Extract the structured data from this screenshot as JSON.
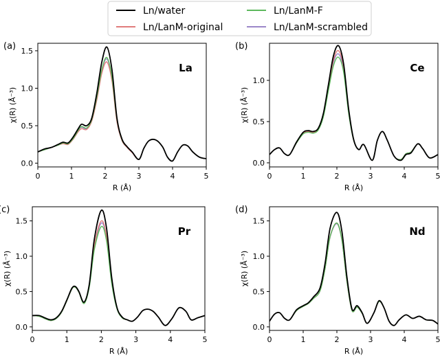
{
  "legend": {
    "placement": "top-center",
    "items": [
      {
        "label": "Ln/water",
        "color": "#000000"
      },
      {
        "label": "Ln/LanM-F",
        "color": "#5cb85c"
      },
      {
        "label": "Ln/LanM-original",
        "color": "#e07b7b"
      },
      {
        "label": "Ln/LanM-scrambled",
        "color": "#9b86c9"
      }
    ]
  },
  "chart_data": [
    {
      "type": "line",
      "panel": "(a)",
      "element": "La",
      "xlabel": "R (Å)",
      "ylabel": "χ(R) (Å⁻³)",
      "xlim": [
        0,
        5
      ],
      "ylim": [
        -0.05,
        1.6
      ],
      "xticks": [
        0,
        1,
        2,
        3,
        4,
        5
      ],
      "yticks": [
        0.0,
        0.5,
        1.0,
        1.5
      ],
      "x": [
        0,
        0.2,
        0.4,
        0.6,
        0.75,
        0.9,
        1.05,
        1.2,
        1.3,
        1.45,
        1.6,
        1.75,
        1.9,
        2.05,
        2.2,
        2.35,
        2.5,
        2.65,
        2.8,
        3.0,
        3.15,
        3.3,
        3.5,
        3.7,
        3.85,
        4.0,
        4.15,
        4.3,
        4.45,
        4.6,
        4.8,
        5.0
      ],
      "series": [
        {
          "name": "Ln/water",
          "color": "#000000",
          "values": [
            0.15,
            0.19,
            0.21,
            0.25,
            0.28,
            0.27,
            0.35,
            0.46,
            0.52,
            0.5,
            0.6,
            0.93,
            1.35,
            1.55,
            1.25,
            0.6,
            0.32,
            0.22,
            0.15,
            0.05,
            0.2,
            0.3,
            0.31,
            0.22,
            0.08,
            0.03,
            0.15,
            0.24,
            0.23,
            0.15,
            0.08,
            0.06
          ]
        },
        {
          "name": "Ln/LanM-F",
          "color": "#5cb85c",
          "values": [
            0.15,
            0.18,
            0.21,
            0.24,
            0.27,
            0.26,
            0.33,
            0.44,
            0.49,
            0.47,
            0.58,
            0.88,
            1.25,
            1.41,
            1.15,
            0.58,
            0.31,
            0.22,
            0.15,
            0.05,
            0.2,
            0.3,
            0.31,
            0.22,
            0.08,
            0.03,
            0.15,
            0.24,
            0.23,
            0.15,
            0.08,
            0.06
          ]
        },
        {
          "name": "Ln/LanM-original",
          "color": "#e07b7b",
          "values": [
            0.15,
            0.18,
            0.21,
            0.24,
            0.26,
            0.25,
            0.32,
            0.42,
            0.46,
            0.45,
            0.56,
            0.84,
            1.2,
            1.35,
            1.1,
            0.55,
            0.3,
            0.21,
            0.14,
            0.05,
            0.2,
            0.3,
            0.31,
            0.22,
            0.08,
            0.03,
            0.15,
            0.24,
            0.23,
            0.15,
            0.08,
            0.06
          ]
        },
        {
          "name": "Ln/LanM-scrambled",
          "color": "#9b86c9",
          "values": [
            0.15,
            0.18,
            0.21,
            0.24,
            0.27,
            0.26,
            0.33,
            0.44,
            0.48,
            0.46,
            0.57,
            0.87,
            1.24,
            1.39,
            1.14,
            0.57,
            0.31,
            0.22,
            0.15,
            0.05,
            0.2,
            0.3,
            0.31,
            0.22,
            0.08,
            0.03,
            0.15,
            0.24,
            0.23,
            0.15,
            0.08,
            0.06
          ]
        }
      ]
    },
    {
      "type": "line",
      "panel": "(b)",
      "element": "Ce",
      "xlabel": "R (Å)",
      "ylabel": "χ(R) (Å⁻³)",
      "xlim": [
        0,
        5
      ],
      "ylim": [
        -0.05,
        1.45
      ],
      "xticks": [
        0,
        1,
        2,
        3,
        4,
        5
      ],
      "yticks": [
        0.0,
        0.5,
        1.0
      ],
      "x": [
        0,
        0.15,
        0.3,
        0.45,
        0.6,
        0.8,
        1.0,
        1.15,
        1.3,
        1.45,
        1.6,
        1.75,
        1.9,
        2.05,
        2.2,
        2.35,
        2.5,
        2.65,
        2.8,
        3.05,
        3.2,
        3.35,
        3.5,
        3.7,
        3.9,
        4.05,
        4.2,
        4.4,
        4.55,
        4.75,
        5.0
      ],
      "series": [
        {
          "name": "Ln/water",
          "color": "#000000",
          "values": [
            0.1,
            0.16,
            0.18,
            0.11,
            0.1,
            0.25,
            0.37,
            0.39,
            0.38,
            0.42,
            0.6,
            0.95,
            1.3,
            1.42,
            1.2,
            0.65,
            0.28,
            0.16,
            0.22,
            0.03,
            0.27,
            0.38,
            0.27,
            0.08,
            0.03,
            0.1,
            0.12,
            0.23,
            0.17,
            0.06,
            0.1
          ]
        },
        {
          "name": "Ln/LanM-F",
          "color": "#5cb85c",
          "values": [
            0.1,
            0.16,
            0.18,
            0.11,
            0.1,
            0.24,
            0.35,
            0.37,
            0.36,
            0.4,
            0.56,
            0.88,
            1.18,
            1.28,
            1.1,
            0.6,
            0.27,
            0.16,
            0.22,
            0.03,
            0.27,
            0.38,
            0.27,
            0.08,
            0.04,
            0.11,
            0.13,
            0.23,
            0.17,
            0.06,
            0.1
          ]
        },
        {
          "name": "Ln/LanM-original",
          "color": "#e07b7b",
          "values": [
            0.1,
            0.16,
            0.18,
            0.11,
            0.1,
            0.24,
            0.36,
            0.38,
            0.37,
            0.41,
            0.58,
            0.92,
            1.25,
            1.36,
            1.16,
            0.62,
            0.27,
            0.16,
            0.22,
            0.03,
            0.27,
            0.38,
            0.27,
            0.08,
            0.04,
            0.11,
            0.13,
            0.23,
            0.17,
            0.06,
            0.1
          ]
        },
        {
          "name": "Ln/LanM-scrambled",
          "color": "#9b86c9",
          "values": [
            0.1,
            0.16,
            0.18,
            0.11,
            0.1,
            0.24,
            0.36,
            0.38,
            0.37,
            0.41,
            0.57,
            0.9,
            1.22,
            1.32,
            1.13,
            0.61,
            0.27,
            0.16,
            0.22,
            0.03,
            0.27,
            0.38,
            0.27,
            0.08,
            0.04,
            0.11,
            0.13,
            0.23,
            0.17,
            0.06,
            0.1
          ]
        }
      ]
    },
    {
      "type": "line",
      "panel": "(c)",
      "element": "Pr",
      "xlabel": "R (Å)",
      "ylabel": "χ(R) (Å⁻³)",
      "xlim": [
        0,
        5
      ],
      "ylim": [
        -0.05,
        1.7
      ],
      "xticks": [
        0,
        1,
        2,
        3,
        4,
        5
      ],
      "yticks": [
        0.0,
        0.5,
        1.0,
        1.5
      ],
      "x": [
        0,
        0.2,
        0.4,
        0.55,
        0.7,
        0.85,
        1.0,
        1.15,
        1.25,
        1.35,
        1.5,
        1.65,
        1.8,
        2.0,
        2.15,
        2.3,
        2.45,
        2.6,
        2.75,
        2.9,
        3.05,
        3.2,
        3.35,
        3.5,
        3.65,
        3.85,
        4.05,
        4.25,
        4.45,
        4.6,
        4.8,
        5.0
      ],
      "series": [
        {
          "name": "Ln/water",
          "color": "#000000",
          "values": [
            0.16,
            0.16,
            0.12,
            0.1,
            0.13,
            0.22,
            0.38,
            0.55,
            0.57,
            0.5,
            0.35,
            0.6,
            1.25,
            1.65,
            1.4,
            0.7,
            0.28,
            0.14,
            0.1,
            0.08,
            0.14,
            0.23,
            0.25,
            0.22,
            0.14,
            0.02,
            0.12,
            0.27,
            0.22,
            0.1,
            0.13,
            0.16
          ]
        },
        {
          "name": "Ln/LanM-F",
          "color": "#5cb85c",
          "values": [
            0.16,
            0.15,
            0.11,
            0.09,
            0.12,
            0.21,
            0.37,
            0.54,
            0.56,
            0.49,
            0.33,
            0.56,
            1.1,
            1.42,
            1.22,
            0.62,
            0.26,
            0.13,
            0.1,
            0.08,
            0.14,
            0.23,
            0.25,
            0.22,
            0.14,
            0.02,
            0.12,
            0.27,
            0.22,
            0.1,
            0.13,
            0.16
          ]
        },
        {
          "name": "Ln/LanM-original",
          "color": "#e07b7b",
          "values": [
            0.16,
            0.15,
            0.11,
            0.09,
            0.12,
            0.21,
            0.37,
            0.54,
            0.56,
            0.49,
            0.34,
            0.58,
            1.16,
            1.5,
            1.28,
            0.65,
            0.27,
            0.13,
            0.1,
            0.08,
            0.14,
            0.23,
            0.25,
            0.22,
            0.14,
            0.02,
            0.12,
            0.27,
            0.22,
            0.1,
            0.13,
            0.16
          ]
        },
        {
          "name": "Ln/LanM-scrambled",
          "color": "#9b86c9",
          "values": [
            0.16,
            0.15,
            0.11,
            0.09,
            0.12,
            0.21,
            0.37,
            0.54,
            0.56,
            0.49,
            0.34,
            0.57,
            1.14,
            1.47,
            1.26,
            0.64,
            0.27,
            0.13,
            0.1,
            0.08,
            0.14,
            0.23,
            0.25,
            0.22,
            0.14,
            0.02,
            0.12,
            0.27,
            0.22,
            0.1,
            0.13,
            0.16
          ]
        }
      ]
    },
    {
      "type": "line",
      "panel": "(d)",
      "element": "Nd",
      "xlabel": "R (Å)",
      "ylabel": "χ(R) (Å⁻³)",
      "xlim": [
        0,
        5
      ],
      "ylim": [
        -0.05,
        1.7
      ],
      "xticks": [
        0,
        1,
        2,
        3,
        4,
        5
      ],
      "yticks": [
        0.0,
        0.5,
        1.0,
        1.5
      ],
      "x": [
        0,
        0.15,
        0.3,
        0.45,
        0.6,
        0.8,
        1.0,
        1.15,
        1.3,
        1.5,
        1.65,
        1.8,
        2.0,
        2.15,
        2.3,
        2.45,
        2.6,
        2.75,
        2.9,
        3.1,
        3.25,
        3.4,
        3.55,
        3.7,
        3.85,
        4.05,
        4.25,
        4.45,
        4.65,
        4.85,
        5.0
      ],
      "series": [
        {
          "name": "Ln/water",
          "color": "#000000",
          "values": [
            0.08,
            0.18,
            0.2,
            0.12,
            0.1,
            0.24,
            0.3,
            0.34,
            0.42,
            0.55,
            0.9,
            1.4,
            1.62,
            1.35,
            0.7,
            0.25,
            0.3,
            0.2,
            0.05,
            0.2,
            0.37,
            0.27,
            0.08,
            0.02,
            0.1,
            0.17,
            0.12,
            0.15,
            0.1,
            0.09,
            0.04
          ]
        },
        {
          "name": "Ln/LanM-F",
          "color": "#5cb85c",
          "values": [
            0.08,
            0.18,
            0.2,
            0.12,
            0.1,
            0.23,
            0.29,
            0.33,
            0.4,
            0.51,
            0.83,
            1.28,
            1.47,
            1.23,
            0.64,
            0.23,
            0.28,
            0.19,
            0.05,
            0.2,
            0.36,
            0.27,
            0.08,
            0.02,
            0.1,
            0.17,
            0.12,
            0.15,
            0.1,
            0.09,
            0.04
          ]
        },
        {
          "name": "Ln/LanM-original",
          "color": "#e07b7b",
          "values": [
            0.08,
            0.18,
            0.2,
            0.12,
            0.1,
            0.23,
            0.29,
            0.33,
            0.4,
            0.51,
            0.83,
            1.28,
            1.47,
            1.23,
            0.64,
            0.23,
            0.28,
            0.19,
            0.05,
            0.2,
            0.36,
            0.27,
            0.08,
            0.02,
            0.1,
            0.17,
            0.12,
            0.15,
            0.1,
            0.09,
            0.04
          ]
        },
        {
          "name": "Ln/LanM-scrambled",
          "color": "#9b86c9",
          "values": [
            0.08,
            0.18,
            0.2,
            0.12,
            0.1,
            0.23,
            0.29,
            0.33,
            0.4,
            0.51,
            0.83,
            1.27,
            1.46,
            1.22,
            0.64,
            0.23,
            0.28,
            0.19,
            0.05,
            0.2,
            0.36,
            0.27,
            0.08,
            0.02,
            0.1,
            0.17,
            0.12,
            0.15,
            0.1,
            0.09,
            0.04
          ]
        }
      ]
    }
  ]
}
